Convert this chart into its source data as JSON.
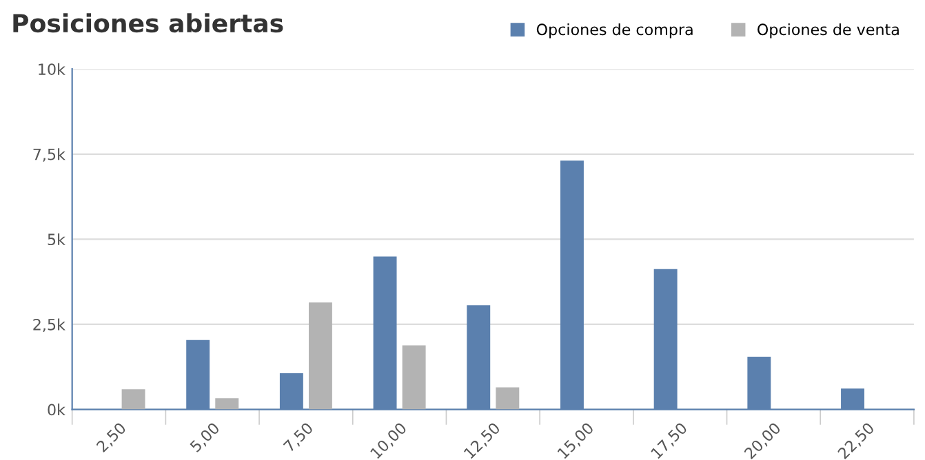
{
  "chart_data": {
    "type": "bar",
    "title": "Posiciones abiertas",
    "categories": [
      "2,50",
      "5,00",
      "7,50",
      "10,00",
      "12,50",
      "15,00",
      "17,50",
      "20,00",
      "22,50"
    ],
    "series": [
      {
        "name": "Opciones de compra",
        "color": "#5b80ae",
        "values": [
          0,
          2040,
          1060,
          4490,
          3060,
          7310,
          4120,
          1550,
          610
        ]
      },
      {
        "name": "Opciones de venta",
        "color": "#b3b3b3",
        "values": [
          590,
          330,
          3140,
          1880,
          650,
          0,
          0,
          0,
          0
        ]
      }
    ],
    "ylim": [
      0,
      10000
    ],
    "yticks": [
      {
        "value": 0,
        "label": "0k"
      },
      {
        "value": 2500,
        "label": "2,5k"
      },
      {
        "value": 5000,
        "label": "5k"
      },
      {
        "value": 7500,
        "label": "7,5k"
      },
      {
        "value": 10000,
        "label": "10k"
      }
    ],
    "grid": "y",
    "legend": "top right"
  }
}
